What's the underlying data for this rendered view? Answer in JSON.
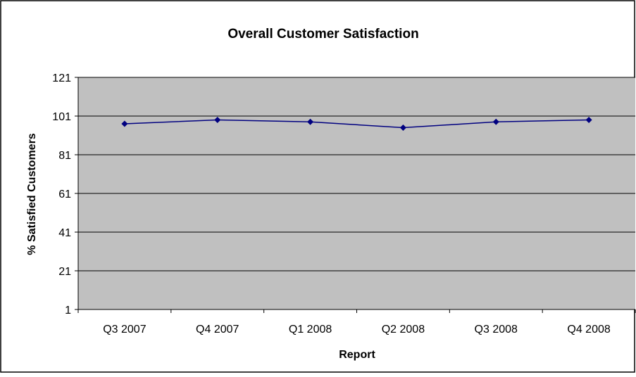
{
  "chart_data": {
    "type": "line",
    "title": "Overall Customer Satisfaction",
    "xlabel": "Report",
    "ylabel": "% Satisfied Customers",
    "categories": [
      "Q3 2007",
      "Q4 2007",
      "Q1 2008",
      "Q2 2008",
      "Q3 2008",
      "Q4 2008"
    ],
    "series": [
      {
        "values": [
          97,
          99,
          98,
          95,
          98,
          99
        ]
      }
    ],
    "ylim": [
      1,
      121
    ],
    "yticks": [
      "1",
      "21",
      "41",
      "61",
      "81",
      "101",
      "121"
    ],
    "grid": true,
    "legend": "none",
    "colors": {
      "plot_background": "#c0c0c0",
      "line": "#000080",
      "gridline": "#000000",
      "frame": "#000000"
    }
  }
}
